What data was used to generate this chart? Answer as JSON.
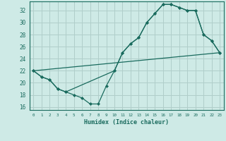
{
  "xlabel": "Humidex (Indice chaleur)",
  "bg_color": "#ceeae6",
  "grid_color": "#b0ceca",
  "line_color": "#1a6b5e",
  "xlim": [
    -0.5,
    23.5
  ],
  "ylim": [
    15.5,
    33.5
  ],
  "yticks": [
    16,
    18,
    20,
    22,
    24,
    26,
    28,
    30,
    32
  ],
  "xticks": [
    0,
    1,
    2,
    3,
    4,
    5,
    6,
    7,
    8,
    9,
    10,
    11,
    12,
    13,
    14,
    15,
    16,
    17,
    18,
    19,
    20,
    21,
    22,
    23
  ],
  "line1_x": [
    0,
    1,
    2,
    3,
    4,
    10,
    11,
    12,
    13,
    14,
    15,
    16,
    17,
    18,
    19,
    20,
    21,
    22,
    23
  ],
  "line1_y": [
    22,
    21,
    20.5,
    19,
    18.5,
    22,
    25,
    26.5,
    27.5,
    30,
    31.5,
    33,
    33,
    32.5,
    32,
    32,
    28,
    27,
    25
  ],
  "line2_x": [
    0,
    1,
    2,
    3,
    4,
    5,
    6,
    7,
    8,
    9,
    10,
    11,
    12,
    13,
    14,
    15,
    16,
    17,
    18,
    19,
    20,
    21,
    22,
    23
  ],
  "line2_y": [
    22,
    21,
    20.5,
    19,
    18.5,
    18,
    17.5,
    16.5,
    16.5,
    19.5,
    22,
    25,
    26.5,
    27.5,
    30,
    31.5,
    33,
    33,
    32.5,
    32,
    32,
    28,
    27,
    25
  ],
  "line3_x": [
    0,
    23
  ],
  "line3_y": [
    22,
    25
  ]
}
